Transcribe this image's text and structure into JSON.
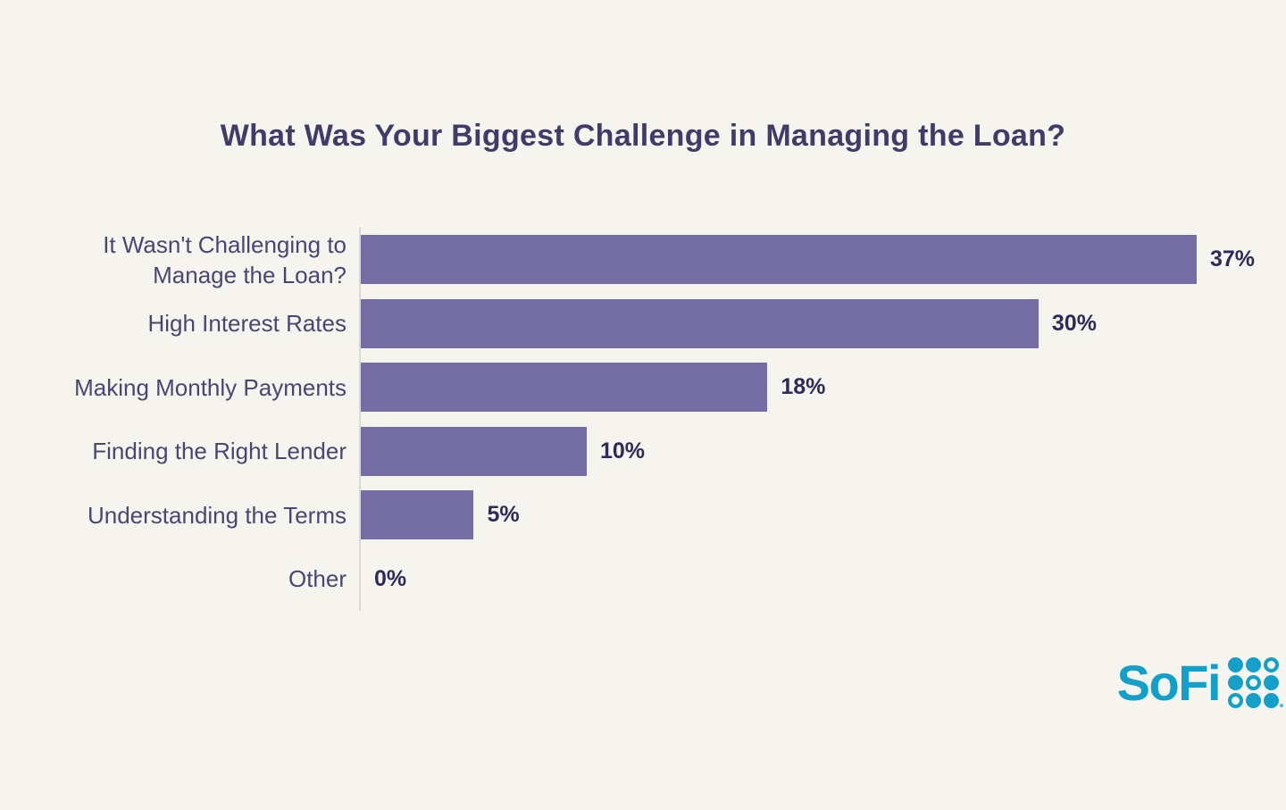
{
  "chart_data": {
    "type": "bar",
    "orientation": "horizontal",
    "title": "What Was Your Biggest Challenge in Managing the Loan?",
    "categories": [
      "It Wasn't Challenging to Manage the Loan?",
      "High Interest Rates",
      "Making Monthly Payments",
      "Finding the Right Lender",
      "Understanding the Terms",
      "Other"
    ],
    "display_labels": [
      "It Wasn't Challenging to\nManage the Loan?",
      "High Interest Rates",
      "Making Monthly Payments",
      "Finding the Right Lender",
      "Understanding the Terms",
      "Other"
    ],
    "values": [
      37,
      30,
      18,
      10,
      5,
      0
    ],
    "value_labels": [
      "37%",
      "30%",
      "18%",
      "10%",
      "5%",
      "0%"
    ],
    "xlabel": "",
    "ylabel": "",
    "xlim": [
      0,
      37
    ],
    "grid": false,
    "legend": false,
    "bar_color": "#756ea5"
  },
  "branding": {
    "logo_text": "SoFi",
    "dot_pattern": [
      [
        1,
        1,
        0
      ],
      [
        1,
        0,
        1
      ],
      [
        0,
        1,
        1
      ]
    ]
  },
  "colors": {
    "background": "#f6f4ef",
    "bar": "#756ea5",
    "title": "#3f3c69",
    "label": "#4a4674",
    "value": "#2e2a59",
    "axis": "#dcd9d2",
    "logo": "#13a0c8"
  }
}
